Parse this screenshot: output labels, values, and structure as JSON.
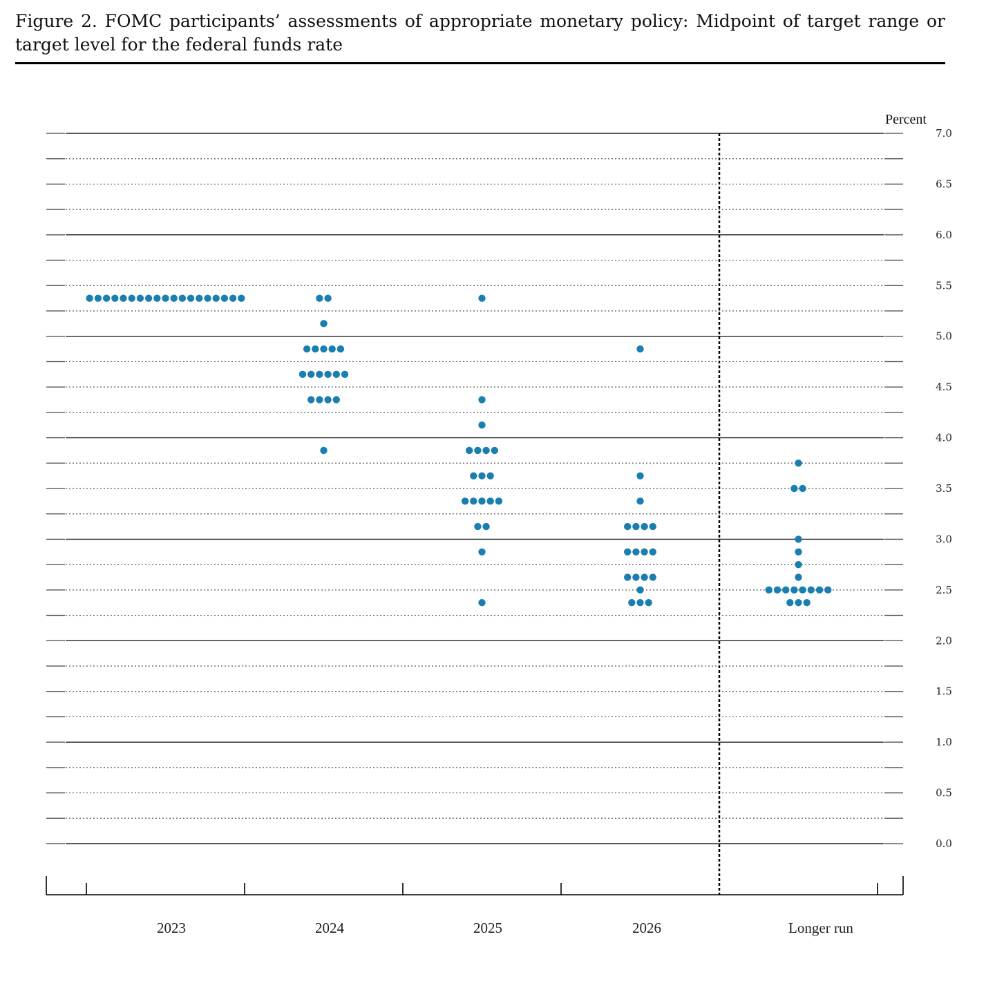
{
  "figure": {
    "caption": "Figure 2.  FOMC participants’ assessments of appropriate monetary policy: Midpoint of target range or target level for the federal funds rate"
  },
  "colors": {
    "dot": "#1a7fb0",
    "axis": "#000000",
    "grid": "#444444"
  },
  "chart_data": {
    "type": "scatter",
    "subtype": "dot-plot",
    "ylabel": "Percent",
    "ylim": [
      0,
      7
    ],
    "y_ticks": [
      "0.0",
      "0.5",
      "1.0",
      "1.5",
      "2.0",
      "2.5",
      "3.0",
      "3.5",
      "4.0",
      "4.5",
      "5.0",
      "5.5",
      "6.0",
      "6.5",
      "7.0"
    ],
    "grid": true,
    "categories": [
      "2023",
      "2024",
      "2025",
      "2026",
      "Longer run"
    ],
    "dots": [
      {
        "category": "2023",
        "counts": [
          {
            "rate": 5.375,
            "count": 19
          }
        ]
      },
      {
        "category": "2024",
        "counts": [
          {
            "rate": 5.375,
            "count": 2
          },
          {
            "rate": 5.125,
            "count": 1
          },
          {
            "rate": 4.875,
            "count": 5
          },
          {
            "rate": 4.625,
            "count": 6
          },
          {
            "rate": 4.375,
            "count": 4
          },
          {
            "rate": 3.875,
            "count": 1
          }
        ]
      },
      {
        "category": "2025",
        "counts": [
          {
            "rate": 5.375,
            "count": 1
          },
          {
            "rate": 4.375,
            "count": 1
          },
          {
            "rate": 4.125,
            "count": 1
          },
          {
            "rate": 3.875,
            "count": 4
          },
          {
            "rate": 3.625,
            "count": 3
          },
          {
            "rate": 3.375,
            "count": 5
          },
          {
            "rate": 3.125,
            "count": 2
          },
          {
            "rate": 2.875,
            "count": 1
          },
          {
            "rate": 2.375,
            "count": 1
          }
        ]
      },
      {
        "category": "2026",
        "counts": [
          {
            "rate": 4.875,
            "count": 1
          },
          {
            "rate": 3.625,
            "count": 1
          },
          {
            "rate": 3.375,
            "count": 1
          },
          {
            "rate": 3.125,
            "count": 4
          },
          {
            "rate": 2.875,
            "count": 4
          },
          {
            "rate": 2.625,
            "count": 4
          },
          {
            "rate": 2.5,
            "count": 1
          },
          {
            "rate": 2.375,
            "count": 3
          }
        ]
      },
      {
        "category": "Longer run",
        "counts": [
          {
            "rate": 3.75,
            "count": 1
          },
          {
            "rate": 3.5,
            "count": 2
          },
          {
            "rate": 3.0,
            "count": 1
          },
          {
            "rate": 2.875,
            "count": 1
          },
          {
            "rate": 2.75,
            "count": 1
          },
          {
            "rate": 2.625,
            "count": 1
          },
          {
            "rate": 2.5,
            "count": 8
          },
          {
            "rate": 2.375,
            "count": 3
          }
        ]
      }
    ]
  }
}
